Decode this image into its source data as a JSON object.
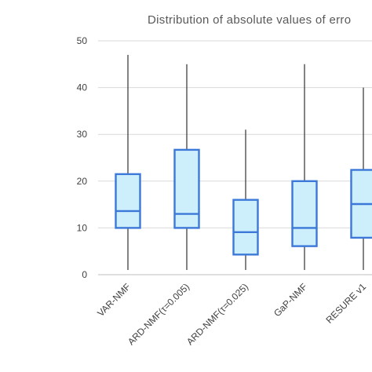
{
  "chart_data": {
    "type": "box",
    "title": "Distribution of absolute values of erro",
    "xlabel": "",
    "ylabel": "",
    "ylim": [
      0,
      50
    ],
    "yticks": [
      0,
      10,
      20,
      30,
      40,
      50
    ],
    "grid": true,
    "categories": [
      "VAR-NMF",
      "ARD-NMF(τ=0.005)",
      "ARD-NMF(τ=0.025)",
      "GaP-NMF",
      "RESURE v1"
    ],
    "boxes": [
      {
        "min": 1,
        "q1": 10,
        "median": 13.6,
        "q3": 21.5,
        "max": 47
      },
      {
        "min": 1,
        "q1": 10,
        "median": 13,
        "q3": 26.7,
        "max": 45
      },
      {
        "min": 1,
        "q1": 4.3,
        "median": 9.1,
        "q3": 16,
        "max": 31
      },
      {
        "min": 1,
        "q1": 6.1,
        "median": 10,
        "q3": 20,
        "max": 45
      },
      {
        "min": 1,
        "q1": 7.9,
        "median": 15.1,
        "q3": 22.4,
        "max": 40
      }
    ],
    "colors": {
      "fill": "#cdeefb",
      "stroke": "#3b78d8",
      "whisker": "#404040",
      "grid": "#d9d9d9"
    }
  }
}
